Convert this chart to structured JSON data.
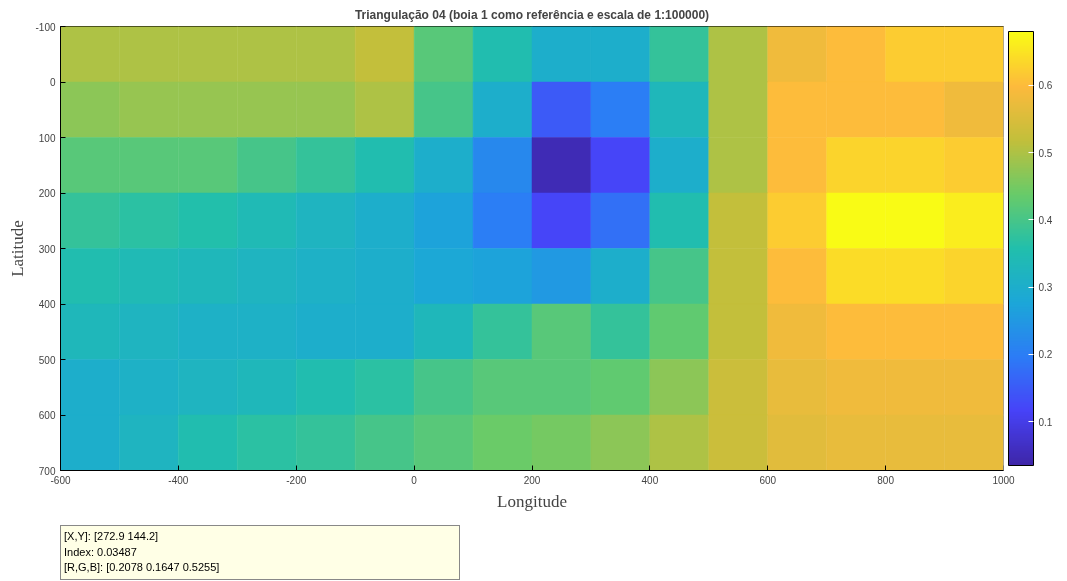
{
  "chart_data": {
    "type": "heatmap",
    "title": "Triangulação 04 (boia 1 como referência e escala de 1:100000)",
    "xlabel": "Longitude",
    "ylabel": "Latitude",
    "x": [
      -550,
      -450,
      -350,
      -250,
      -150,
      -50,
      50,
      150,
      250,
      350,
      450,
      550,
      650,
      750,
      850,
      950
    ],
    "y": [
      -50,
      50,
      150,
      250,
      350,
      450,
      550,
      650
    ],
    "cells": [
      [
        0.5,
        0.5,
        0.5,
        0.5,
        0.5,
        0.52,
        0.42,
        0.35,
        0.3,
        0.3,
        0.38,
        0.5,
        0.58,
        0.6,
        0.62,
        0.62
      ],
      [
        0.47,
        0.48,
        0.48,
        0.48,
        0.48,
        0.5,
        0.4,
        0.3,
        0.15,
        0.2,
        0.33,
        0.5,
        0.6,
        0.6,
        0.6,
        0.58
      ],
      [
        0.42,
        0.42,
        0.42,
        0.4,
        0.38,
        0.35,
        0.3,
        0.22,
        0.05,
        0.12,
        0.3,
        0.5,
        0.6,
        0.63,
        0.63,
        0.62
      ],
      [
        0.38,
        0.37,
        0.36,
        0.34,
        0.32,
        0.3,
        0.27,
        0.2,
        0.12,
        0.18,
        0.35,
        0.52,
        0.62,
        0.68,
        0.68,
        0.66
      ],
      [
        0.35,
        0.34,
        0.33,
        0.32,
        0.31,
        0.3,
        0.28,
        0.27,
        0.25,
        0.3,
        0.4,
        0.52,
        0.6,
        0.64,
        0.64,
        0.63
      ],
      [
        0.33,
        0.32,
        0.31,
        0.31,
        0.3,
        0.3,
        0.33,
        0.38,
        0.42,
        0.38,
        0.43,
        0.52,
        0.58,
        0.6,
        0.6,
        0.6
      ],
      [
        0.3,
        0.31,
        0.32,
        0.33,
        0.35,
        0.37,
        0.4,
        0.42,
        0.42,
        0.43,
        0.47,
        0.53,
        0.57,
        0.58,
        0.58,
        0.58
      ],
      [
        0.3,
        0.32,
        0.35,
        0.37,
        0.38,
        0.4,
        0.42,
        0.44,
        0.45,
        0.47,
        0.5,
        0.53,
        0.56,
        0.57,
        0.57,
        0.57
      ]
    ],
    "xlim": [
      -600,
      1000
    ],
    "ylim": [
      700,
      -100
    ],
    "xticks": [
      -600,
      -400,
      -200,
      0,
      200,
      400,
      600,
      800,
      1000
    ],
    "yticks": [
      -100,
      0,
      100,
      200,
      300,
      400,
      500,
      600,
      700
    ],
    "clim": [
      0.035,
      0.68
    ],
    "cticks": [
      0.1,
      0.2,
      0.3,
      0.4,
      0.5,
      0.6
    ],
    "grid": false,
    "annotations": [
      "[X,Y]: [272.9 144.2]\nIndex: 0.03487\n[R,G,B]: [0.2078 0.1647 0.5255]"
    ]
  }
}
